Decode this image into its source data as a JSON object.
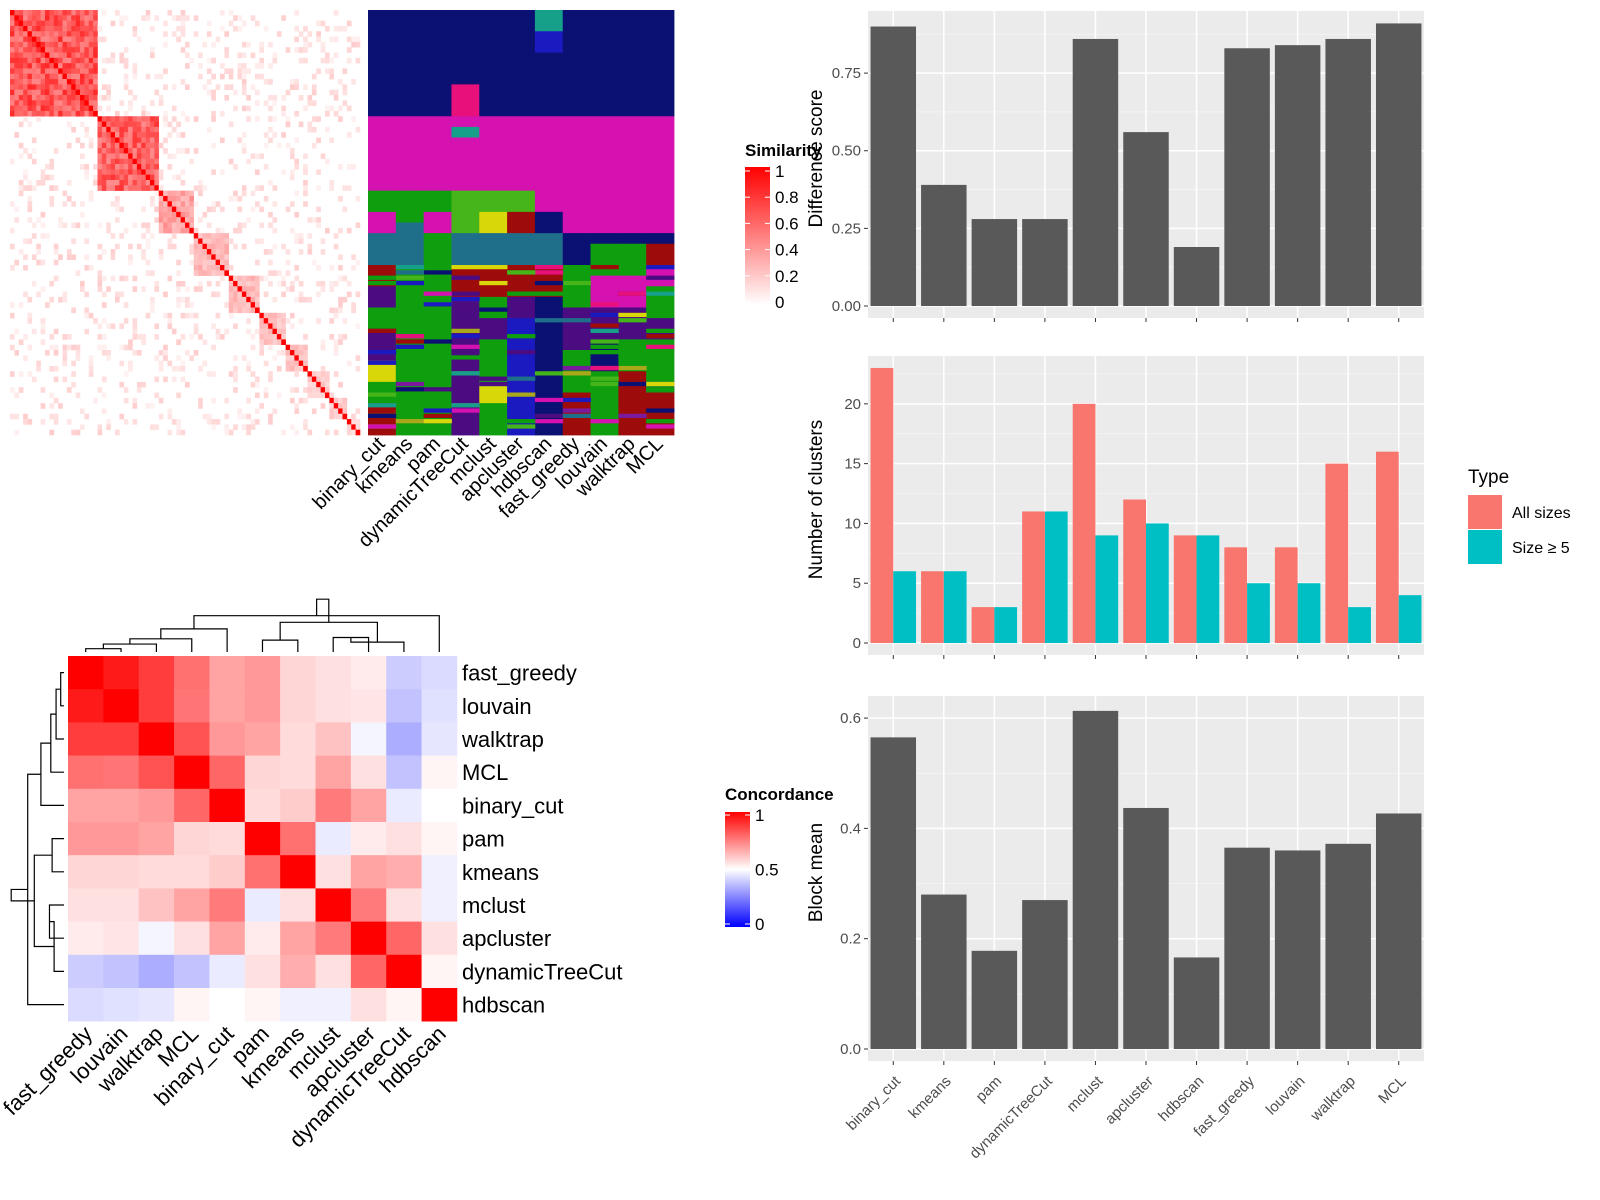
{
  "methods": [
    "binary_cut",
    "kmeans",
    "pam",
    "dynamicTreeCut",
    "mclust",
    "apcluster",
    "hdbscan",
    "fast_greedy",
    "louvain",
    "walktrap",
    "MCL"
  ],
  "concordance_order": [
    "fast_greedy",
    "louvain",
    "walktrap",
    "MCL",
    "binary_cut",
    "pam",
    "kmeans",
    "mclust",
    "apcluster",
    "dynamicTreeCut",
    "hdbscan"
  ],
  "legends": {
    "similarity": {
      "title": "Similarity",
      "ticks": [
        "1",
        "0.8",
        "0.6",
        "0.4",
        "0.2",
        "0"
      ]
    },
    "concordance": {
      "title": "Concordance",
      "ticks": [
        "1",
        "0.5",
        "0"
      ]
    },
    "type": {
      "title": "Type",
      "items": [
        "All sizes",
        "Size ≥ 5"
      ]
    }
  },
  "colors": {
    "all_sizes": "#F8766D",
    "size5": "#00BFC4",
    "bar": "#595959",
    "panel": "#EBEBEB",
    "high": "#FF0000",
    "low": "#0000FF"
  },
  "chart_data": [
    {
      "type": "heatmap",
      "name": "similarity",
      "description_visible": "Partition similarity heatmap with cluster assignment columns",
      "value_range": [
        0,
        1
      ],
      "assignment_columns": [
        "binary_cut",
        "kmeans",
        "pam",
        "dynamicTreeCut",
        "mclust",
        "apcluster",
        "hdbscan",
        "fast_greedy",
        "louvain",
        "walktrap",
        "MCL"
      ]
    },
    {
      "type": "heatmap",
      "name": "concordance",
      "rows": [
        "fast_greedy",
        "louvain",
        "walktrap",
        "MCL",
        "binary_cut",
        "pam",
        "kmeans",
        "mclust",
        "apcluster",
        "dynamicTreeCut",
        "hdbscan"
      ],
      "columns": [
        "fast_greedy",
        "louvain",
        "walktrap",
        "MCL",
        "binary_cut",
        "pam",
        "kmeans",
        "mclust",
        "apcluster",
        "dynamicTreeCut",
        "hdbscan"
      ],
      "values": [
        [
          1.0,
          0.95,
          0.88,
          0.78,
          0.68,
          0.7,
          0.58,
          0.56,
          0.54,
          0.4,
          0.43
        ],
        [
          0.95,
          1.0,
          0.88,
          0.77,
          0.68,
          0.7,
          0.58,
          0.56,
          0.55,
          0.38,
          0.44
        ],
        [
          0.88,
          0.88,
          1.0,
          0.84,
          0.7,
          0.68,
          0.57,
          0.62,
          0.48,
          0.34,
          0.45
        ],
        [
          0.78,
          0.77,
          0.84,
          1.0,
          0.8,
          0.58,
          0.57,
          0.68,
          0.56,
          0.38,
          0.52
        ],
        [
          0.68,
          0.68,
          0.7,
          0.8,
          1.0,
          0.57,
          0.6,
          0.76,
          0.68,
          0.46,
          0.5
        ],
        [
          0.7,
          0.7,
          0.68,
          0.58,
          0.57,
          1.0,
          0.78,
          0.46,
          0.54,
          0.56,
          0.52
        ],
        [
          0.58,
          0.58,
          0.57,
          0.57,
          0.6,
          0.78,
          1.0,
          0.56,
          0.68,
          0.66,
          0.47
        ],
        [
          0.56,
          0.56,
          0.62,
          0.68,
          0.76,
          0.46,
          0.56,
          1.0,
          0.76,
          0.56,
          0.47
        ],
        [
          0.54,
          0.55,
          0.48,
          0.56,
          0.68,
          0.54,
          0.68,
          0.76,
          1.0,
          0.8,
          0.56
        ],
        [
          0.4,
          0.38,
          0.34,
          0.38,
          0.46,
          0.56,
          0.66,
          0.56,
          0.8,
          1.0,
          0.52
        ],
        [
          0.43,
          0.44,
          0.45,
          0.52,
          0.5,
          0.52,
          0.47,
          0.47,
          0.56,
          0.52,
          1.0
        ]
      ],
      "value_range": [
        0,
        1
      ]
    },
    {
      "type": "bar",
      "name": "difference-score",
      "categories": [
        "binary_cut",
        "kmeans",
        "pam",
        "dynamicTreeCut",
        "mclust",
        "apcluster",
        "hdbscan",
        "fast_greedy",
        "louvain",
        "walktrap",
        "MCL"
      ],
      "values": [
        0.9,
        0.39,
        0.28,
        0.28,
        0.86,
        0.56,
        0.19,
        0.83,
        0.84,
        0.86,
        0.91
      ],
      "ylabel": "Difference score",
      "ylim": [
        0,
        0.95
      ],
      "yticks": [
        0,
        0.25,
        0.5,
        0.75
      ],
      "ytick_labels": [
        "0.00",
        "0.25",
        "0.50",
        "0.75"
      ]
    },
    {
      "type": "bar",
      "name": "number-of-clusters",
      "categories": [
        "binary_cut",
        "kmeans",
        "pam",
        "dynamicTreeCut",
        "mclust",
        "apcluster",
        "hdbscan",
        "fast_greedy",
        "louvain",
        "walktrap",
        "MCL"
      ],
      "series": [
        {
          "name": "All sizes",
          "values": [
            23,
            6,
            3,
            11,
            20,
            12,
            9,
            8,
            8,
            15,
            16
          ]
        },
        {
          "name": "Size ≥ 5",
          "values": [
            6,
            6,
            3,
            11,
            9,
            10,
            9,
            5,
            5,
            3,
            4
          ]
        }
      ],
      "ylabel": "Number of clusters",
      "ylim": [
        0,
        24
      ],
      "yticks": [
        0,
        5,
        10,
        15,
        20
      ],
      "ytick_labels": [
        "0",
        "5",
        "10",
        "15",
        "20"
      ],
      "legend": "right"
    },
    {
      "type": "bar",
      "name": "block-mean",
      "categories": [
        "binary_cut",
        "kmeans",
        "pam",
        "dynamicTreeCut",
        "mclust",
        "apcluster",
        "hdbscan",
        "fast_greedy",
        "louvain",
        "walktrap",
        "MCL"
      ],
      "values": [
        0.565,
        0.28,
        0.178,
        0.27,
        0.613,
        0.437,
        0.166,
        0.365,
        0.36,
        0.372,
        0.427
      ],
      "ylabel": "Block mean",
      "ylim": [
        0,
        0.64
      ],
      "yticks": [
        0,
        0.2,
        0.4,
        0.6
      ],
      "ytick_labels": [
        "0.0",
        "0.2",
        "0.4",
        "0.6"
      ]
    }
  ]
}
